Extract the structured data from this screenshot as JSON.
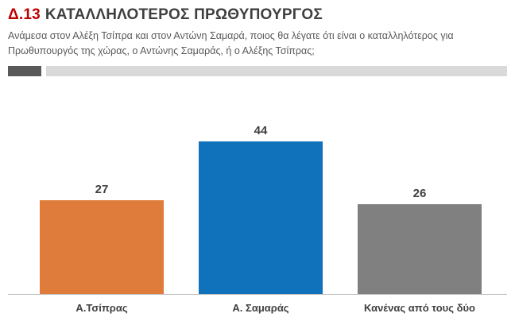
{
  "header": {
    "code": "Δ.13",
    "title": "ΚΑΤΑΛΛΗΛΟΤΕΡΟΣ ΠΡΩΘΥΠΟΥΡΓΟΣ",
    "subtitle": "Ανάμεσα στον Αλέξη Τσίπρα και στον Αντώνη Σαμαρά, ποιος θα λέγατε ότι είναι ο καταλληλότερος για Πρωθυπουργός της χώρας, ο Αντώνης Σαμαράς, ή ο Αλέξης Τσίπρας;"
  },
  "colors": {
    "accent_red": "#C00000",
    "title_dark": "#3F3F3F",
    "subtitle_gray": "#595959",
    "divider_dark": "#595959",
    "divider_light": "#D9D9D9",
    "axis_line": "#BFBFBF",
    "value_label": "#404040"
  },
  "chart_data": {
    "type": "bar",
    "title": "Δ.13 ΚΑΤΑΛΛΗΛΟΤΕΡΟΣ ΠΡΩΘΥΠΟΥΡΓΟΣ",
    "categories": [
      "Α.Τσίπρας",
      "Α. Σαμαράς",
      "Κανένας από τους δύο"
    ],
    "values": [
      27,
      44,
      26
    ],
    "bar_colors": [
      "#E07C3B",
      "#1072BA",
      "#808080"
    ],
    "xlabel": "",
    "ylabel": "",
    "ylim": [
      0,
      50
    ],
    "grid": false,
    "legend": false,
    "data_labels": true
  }
}
